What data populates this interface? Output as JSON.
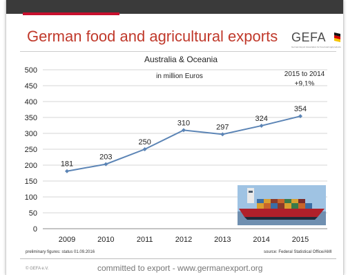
{
  "slide": {
    "title": "German food and agricultural exports",
    "logo_text": "GEFA",
    "logo_subtitle": "German Export Association for Food and Agriproducts",
    "footnote_left": "preliminary figures: status 01.09.2016",
    "footnote_right": "source: Federal Statistical Office/AMI",
    "copyright": "© GEFA e.V.",
    "tagline": "committed to export - www.germanexport.org"
  },
  "colors": {
    "accent": "#c8102e",
    "title": "#c0392b",
    "line": "#5b84b5",
    "topbar": "#3a3a3a"
  },
  "chart_data": {
    "type": "line",
    "title": "Australia & Oceania",
    "subtitle": "in million Euros",
    "annotation_line1": "2015 to 2014",
    "annotation_line2": "+9,1%",
    "categories": [
      "2009",
      "2010",
      "2011",
      "2012",
      "2013",
      "2014",
      "2015"
    ],
    "series": [
      {
        "name": "",
        "values": [
          181,
          203,
          250,
          310,
          297,
          324,
          354
        ]
      }
    ],
    "data_labels": [
      "181",
      "203",
      "250",
      "310",
      "297",
      "324",
      "354"
    ],
    "y_ticks": [
      "0",
      "50",
      "100",
      "150",
      "200",
      "250",
      "300",
      "350",
      "400",
      "450",
      "500"
    ],
    "ylim": [
      0,
      500
    ],
    "grid": true,
    "xlabel": "",
    "ylabel": ""
  }
}
